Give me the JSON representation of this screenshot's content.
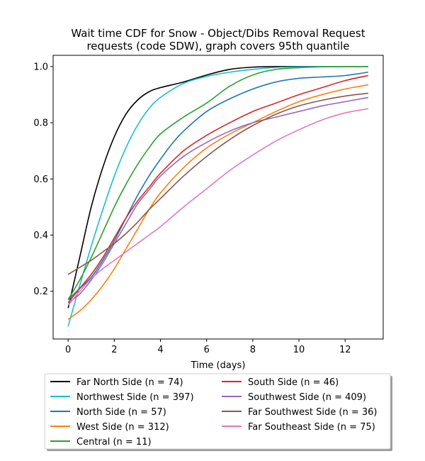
{
  "chart_data": {
    "type": "line",
    "title": "Wait time CDF for Snow - Object/Dibs Removal Request",
    "subtitle": "requests (code SDW), graph covers 95th quantile",
    "xlabel": "Time (days)",
    "ylabel": "",
    "xlim": [
      -0.65,
      13.65
    ],
    "ylim": [
      0.03,
      1.04
    ],
    "x_ticks": [
      0,
      2,
      4,
      6,
      8,
      10,
      12
    ],
    "y_ticks": [
      0.2,
      0.4,
      0.6,
      0.8,
      1.0
    ],
    "x_tick_labels": [
      "0",
      "2",
      "4",
      "6",
      "8",
      "10",
      "12"
    ],
    "y_tick_labels": [
      "0.2",
      "0.4",
      "0.6",
      "0.8",
      "1.0"
    ],
    "grid": false,
    "legend_position": "bottom",
    "series": [
      {
        "name": "Far North Side (n = 74)",
        "color": "#000000",
        "points": [
          [
            0,
            0.14
          ],
          [
            0.5,
            0.32
          ],
          [
            1,
            0.5
          ],
          [
            1.5,
            0.64
          ],
          [
            2,
            0.75
          ],
          [
            2.5,
            0.83
          ],
          [
            3,
            0.88
          ],
          [
            3.5,
            0.91
          ],
          [
            4,
            0.925
          ],
          [
            5,
            0.945
          ],
          [
            6,
            0.97
          ],
          [
            7,
            0.99
          ],
          [
            8,
            0.998
          ],
          [
            9,
            1.0
          ],
          [
            10,
            1.0
          ],
          [
            11,
            1.0
          ],
          [
            12,
            1.0
          ],
          [
            13,
            1.0
          ]
        ]
      },
      {
        "name": "Northwest Side (n = 397)",
        "color": "#17becf",
        "points": [
          [
            0,
            0.075
          ],
          [
            0.5,
            0.22
          ],
          [
            1,
            0.36
          ],
          [
            1.5,
            0.49
          ],
          [
            2,
            0.61
          ],
          [
            2.5,
            0.71
          ],
          [
            3,
            0.79
          ],
          [
            3.5,
            0.85
          ],
          [
            4,
            0.89
          ],
          [
            5,
            0.94
          ],
          [
            6,
            0.965
          ],
          [
            7,
            0.98
          ],
          [
            8,
            0.99
          ],
          [
            9,
            0.997
          ],
          [
            10,
            0.999
          ],
          [
            11,
            1.0
          ],
          [
            12,
            1.0
          ],
          [
            13,
            1.0
          ]
        ]
      },
      {
        "name": "North Side (n = 57)",
        "color": "#1f77b4",
        "points": [
          [
            0,
            0.17
          ],
          [
            0.5,
            0.21
          ],
          [
            1,
            0.25
          ],
          [
            1.5,
            0.31
          ],
          [
            2,
            0.38
          ],
          [
            2.5,
            0.46
          ],
          [
            3,
            0.54
          ],
          [
            3.5,
            0.61
          ],
          [
            4,
            0.67
          ],
          [
            4.5,
            0.725
          ],
          [
            5,
            0.77
          ],
          [
            6,
            0.84
          ],
          [
            7,
            0.885
          ],
          [
            8,
            0.92
          ],
          [
            9,
            0.945
          ],
          [
            10,
            0.958
          ],
          [
            11,
            0.963
          ],
          [
            12,
            0.968
          ],
          [
            13,
            0.98
          ]
        ]
      },
      {
        "name": "West Side (n = 312)",
        "color": "#ff7f0e",
        "points": [
          [
            0,
            0.1
          ],
          [
            0.5,
            0.13
          ],
          [
            1,
            0.17
          ],
          [
            1.5,
            0.22
          ],
          [
            2,
            0.28
          ],
          [
            2.5,
            0.35
          ],
          [
            3,
            0.42
          ],
          [
            3.5,
            0.49
          ],
          [
            4,
            0.55
          ],
          [
            5,
            0.64
          ],
          [
            6,
            0.71
          ],
          [
            7,
            0.76
          ],
          [
            8,
            0.8
          ],
          [
            9,
            0.84
          ],
          [
            10,
            0.875
          ],
          [
            11,
            0.9
          ],
          [
            12,
            0.92
          ],
          [
            13,
            0.935
          ]
        ]
      },
      {
        "name": "Central (n = 11)",
        "color": "#2ca02c",
        "points": [
          [
            0,
            0.17
          ],
          [
            0.5,
            0.24
          ],
          [
            1,
            0.32
          ],
          [
            1.5,
            0.41
          ],
          [
            2,
            0.5
          ],
          [
            2.5,
            0.58
          ],
          [
            3,
            0.65
          ],
          [
            3.5,
            0.71
          ],
          [
            4,
            0.76
          ],
          [
            5,
            0.82
          ],
          [
            6,
            0.87
          ],
          [
            7,
            0.93
          ],
          [
            8,
            0.97
          ],
          [
            9,
            0.99
          ],
          [
            10,
            0.996
          ],
          [
            11,
            0.999
          ],
          [
            12,
            1.0
          ],
          [
            13,
            1.0
          ]
        ]
      },
      {
        "name": "South Side (n = 46)",
        "color": "#d62728",
        "points": [
          [
            0,
            0.16
          ],
          [
            0.5,
            0.21
          ],
          [
            1,
            0.26
          ],
          [
            1.5,
            0.32
          ],
          [
            2,
            0.39
          ],
          [
            2.5,
            0.46
          ],
          [
            3,
            0.52
          ],
          [
            3.5,
            0.57
          ],
          [
            4,
            0.62
          ],
          [
            5,
            0.7
          ],
          [
            6,
            0.755
          ],
          [
            7,
            0.8
          ],
          [
            8,
            0.84
          ],
          [
            9,
            0.87
          ],
          [
            10,
            0.9
          ],
          [
            11,
            0.925
          ],
          [
            12,
            0.95
          ],
          [
            13,
            0.968
          ]
        ]
      },
      {
        "name": "Southwest Side (n = 409)",
        "color": "#9467bd",
        "points": [
          [
            0,
            0.16
          ],
          [
            0.5,
            0.19
          ],
          [
            1,
            0.24
          ],
          [
            1.5,
            0.3
          ],
          [
            2,
            0.37
          ],
          [
            2.5,
            0.44
          ],
          [
            3,
            0.51
          ],
          [
            3.5,
            0.56
          ],
          [
            4,
            0.61
          ],
          [
            5,
            0.68
          ],
          [
            6,
            0.73
          ],
          [
            7,
            0.77
          ],
          [
            8,
            0.8
          ],
          [
            9,
            0.82
          ],
          [
            10,
            0.84
          ],
          [
            11,
            0.86
          ],
          [
            12,
            0.875
          ],
          [
            13,
            0.89
          ]
        ]
      },
      {
        "name": "Far Southwest Side (n = 36)",
        "color": "#8c564b",
        "points": [
          [
            0,
            0.26
          ],
          [
            0.5,
            0.285
          ],
          [
            1,
            0.31
          ],
          [
            1.5,
            0.34
          ],
          [
            2,
            0.37
          ],
          [
            2.5,
            0.405
          ],
          [
            3,
            0.445
          ],
          [
            3.5,
            0.49
          ],
          [
            4,
            0.53
          ],
          [
            5,
            0.61
          ],
          [
            6,
            0.68
          ],
          [
            7,
            0.74
          ],
          [
            8,
            0.79
          ],
          [
            9,
            0.83
          ],
          [
            10,
            0.86
          ],
          [
            11,
            0.88
          ],
          [
            12,
            0.895
          ],
          [
            13,
            0.905
          ]
        ]
      },
      {
        "name": "Far Southeast Side (n = 75)",
        "color": "#e377c2",
        "points": [
          [
            0,
            0.15
          ],
          [
            0.5,
            0.2
          ],
          [
            1,
            0.245
          ],
          [
            1.5,
            0.28
          ],
          [
            2,
            0.31
          ],
          [
            2.5,
            0.34
          ],
          [
            3,
            0.37
          ],
          [
            3.5,
            0.4
          ],
          [
            4,
            0.43
          ],
          [
            5,
            0.5
          ],
          [
            6,
            0.565
          ],
          [
            7,
            0.63
          ],
          [
            8,
            0.685
          ],
          [
            9,
            0.735
          ],
          [
            10,
            0.775
          ],
          [
            11,
            0.81
          ],
          [
            12,
            0.835
          ],
          [
            13,
            0.85
          ]
        ]
      }
    ]
  }
}
